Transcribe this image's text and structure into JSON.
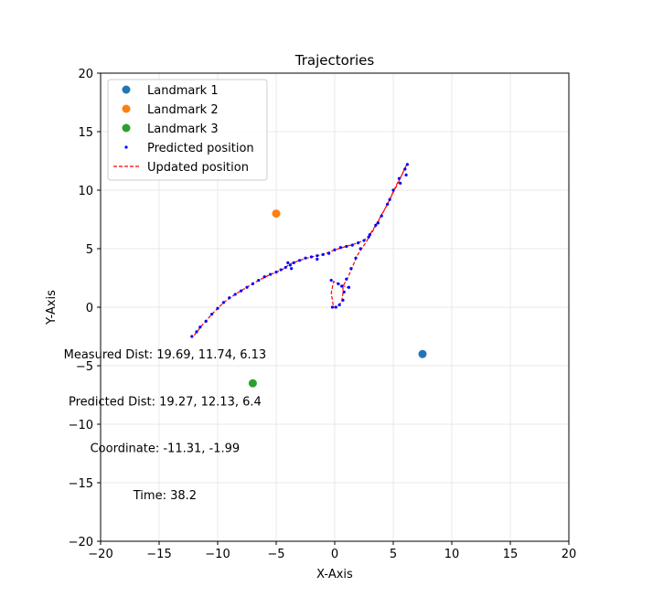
{
  "chart_data": {
    "type": "scatter",
    "title": "Trajectories",
    "xlabel": "X-Axis",
    "ylabel": "Y-Axis",
    "xlim": [
      -20,
      20
    ],
    "ylim": [
      -20,
      20
    ],
    "xticks": [
      -20,
      -15,
      -10,
      -5,
      0,
      5,
      10,
      15,
      20
    ],
    "yticks": [
      -20,
      -15,
      -10,
      -5,
      0,
      5,
      10,
      15,
      20
    ],
    "xtick_labels": [
      "−20",
      "−15",
      "−10",
      "−5",
      "0",
      "5",
      "10",
      "15",
      "20"
    ],
    "ytick_labels": [
      "−20",
      "−15",
      "−10",
      "−5",
      "0",
      "5",
      "10",
      "15",
      "20"
    ],
    "grid": true,
    "legend_position": "top-left",
    "landmarks": [
      {
        "name": "Landmark 1",
        "x": 7.5,
        "y": -4.0,
        "color": "#1f77b4"
      },
      {
        "name": "Landmark 2",
        "x": -5.0,
        "y": 8.0,
        "color": "#ff7f0e"
      },
      {
        "name": "Landmark 3",
        "x": -7.0,
        "y": -6.5,
        "color": "#2ca02c"
      }
    ],
    "predicted": {
      "name": "Predicted position",
      "color": "#0000ff",
      "points": [
        [
          -12.2,
          -2.5
        ],
        [
          -11.8,
          -2.1
        ],
        [
          -11.5,
          -1.7
        ],
        [
          -11.0,
          -1.2
        ],
        [
          -10.5,
          -0.6
        ],
        [
          -10.0,
          -0.1
        ],
        [
          -9.5,
          0.4
        ],
        [
          -9.0,
          0.8
        ],
        [
          -8.5,
          1.1
        ],
        [
          -8.0,
          1.4
        ],
        [
          -7.5,
          1.7
        ],
        [
          -7.0,
          2.0
        ],
        [
          -6.5,
          2.3
        ],
        [
          -6.0,
          2.6
        ],
        [
          -5.5,
          2.8
        ],
        [
          -5.0,
          3.0
        ],
        [
          -4.6,
          3.2
        ],
        [
          -4.2,
          3.4
        ],
        [
          -3.8,
          3.6
        ],
        [
          -3.5,
          3.8
        ],
        [
          -3.0,
          4.0
        ],
        [
          -2.5,
          4.2
        ],
        [
          -2.0,
          4.3
        ],
        [
          -1.5,
          4.4
        ],
        [
          -1.0,
          4.5
        ],
        [
          -0.5,
          4.6
        ],
        [
          0.0,
          4.9
        ],
        [
          0.5,
          5.1
        ],
        [
          1.0,
          5.2
        ],
        [
          1.5,
          5.3
        ],
        [
          2.0,
          5.5
        ],
        [
          2.5,
          5.7
        ],
        [
          3.0,
          6.2
        ],
        [
          3.5,
          7.0
        ],
        [
          4.0,
          7.8
        ],
        [
          4.5,
          8.8
        ],
        [
          5.0,
          10.0
        ],
        [
          5.5,
          11.0
        ],
        [
          6.0,
          11.8
        ],
        [
          6.2,
          12.2
        ],
        [
          6.1,
          11.3
        ],
        [
          5.6,
          10.6
        ],
        [
          4.7,
          9.2
        ],
        [
          3.7,
          7.2
        ],
        [
          2.9,
          6.0
        ],
        [
          2.2,
          5.0
        ],
        [
          1.8,
          4.2
        ],
        [
          1.4,
          3.3
        ],
        [
          1.0,
          2.4
        ],
        [
          0.6,
          1.8
        ],
        [
          0.8,
          1.3
        ],
        [
          0.7,
          0.6
        ],
        [
          0.4,
          0.2
        ],
        [
          0.1,
          0.0
        ],
        [
          -0.2,
          0.0
        ],
        [
          -0.3,
          2.3
        ],
        [
          0.3,
          2.0
        ],
        [
          1.2,
          1.7
        ],
        [
          -1.5,
          4.1
        ],
        [
          -3.7,
          3.3
        ],
        [
          -4.0,
          3.8
        ]
      ]
    },
    "updated": {
      "name": "Updated position",
      "color": "#ff0000",
      "points": [
        [
          -12.0,
          -2.4
        ],
        [
          -11.3,
          -1.5
        ],
        [
          -10.5,
          -0.6
        ],
        [
          -9.5,
          0.4
        ],
        [
          -8.5,
          1.1
        ],
        [
          -7.5,
          1.7
        ],
        [
          -6.5,
          2.3
        ],
        [
          -5.5,
          2.8
        ],
        [
          -4.5,
          3.2
        ],
        [
          -3.8,
          3.7
        ],
        [
          -3.0,
          4.0
        ],
        [
          -2.0,
          4.3
        ],
        [
          -1.0,
          4.5
        ],
        [
          0.0,
          4.9
        ],
        [
          1.0,
          5.2
        ],
        [
          2.0,
          5.5
        ],
        [
          2.8,
          5.9
        ],
        [
          3.5,
          7.0
        ],
        [
          4.5,
          8.8
        ],
        [
          5.3,
          10.5
        ],
        [
          6.0,
          11.8
        ],
        [
          6.1,
          12.1
        ],
        [
          5.5,
          10.8
        ],
        [
          4.5,
          8.8
        ],
        [
          3.6,
          7.1
        ],
        [
          2.7,
          5.6
        ],
        [
          1.9,
          4.4
        ],
        [
          1.5,
          3.4
        ],
        [
          1.1,
          2.5
        ],
        [
          0.7,
          1.8
        ],
        [
          0.7,
          1.2
        ],
        [
          0.6,
          0.5
        ],
        [
          0.3,
          0.1
        ],
        [
          -0.1,
          0.0
        ],
        [
          -0.3,
          1.2
        ],
        [
          -0.1,
          2.2
        ],
        [
          0.8,
          1.8
        ],
        [
          1.3,
          1.6
        ]
      ]
    },
    "annotations": [
      {
        "text": "Measured Dist: 19.69, 11.74, 6.13",
        "x": -14.5,
        "y": -4.0
      },
      {
        "text": "Predicted Dist: 19.27, 12.13, 6.4",
        "x": -14.5,
        "y": -8.0
      },
      {
        "text": "Coordinate: -11.31, -1.99",
        "x": -14.5,
        "y": -12.0
      },
      {
        "text": "Time: 38.2",
        "x": -14.5,
        "y": -16.0
      }
    ]
  }
}
